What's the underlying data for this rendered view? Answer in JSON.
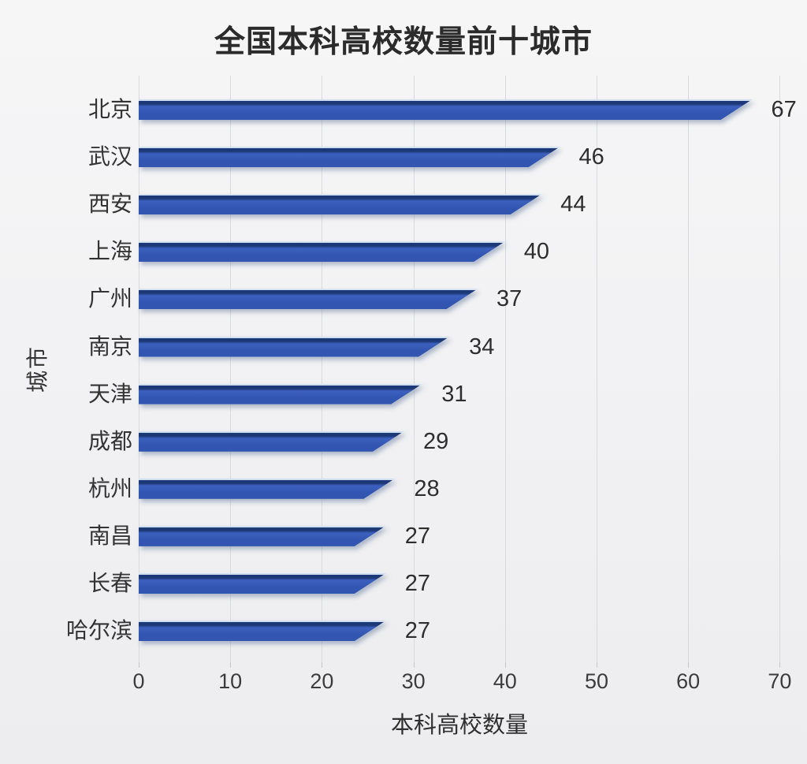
{
  "title": "全国本科高校数量前十城市",
  "chart_data": {
    "type": "bar",
    "orientation": "horizontal",
    "title": "全国本科高校数量前十城市",
    "xlabel": "本科高校数量",
    "ylabel": "城市",
    "categories": [
      "北京",
      "武汉",
      "西安",
      "上海",
      "广州",
      "南京",
      "天津",
      "成都",
      "杭州",
      "南昌",
      "长春",
      "哈尔滨"
    ],
    "values": [
      67,
      46,
      44,
      40,
      37,
      34,
      31,
      29,
      28,
      27,
      27,
      27
    ],
    "xlim": [
      0,
      70
    ],
    "xticks": [
      0,
      10,
      20,
      30,
      40,
      50,
      60,
      70
    ],
    "grid": "vertical-gridlines-on",
    "legend": "none",
    "value_labels_shown": true,
    "colors": {
      "bar_fill": "#3155b0",
      "bar_fill_light": "#3c60bd",
      "bar_top_edge": "#1d3876",
      "bar_top_highlight": "#cfdff1",
      "grid_line": "#d9dade",
      "tick_mark": "#c6c7cc",
      "text": "#2f2f2f",
      "background": "#f2f2f4"
    }
  }
}
